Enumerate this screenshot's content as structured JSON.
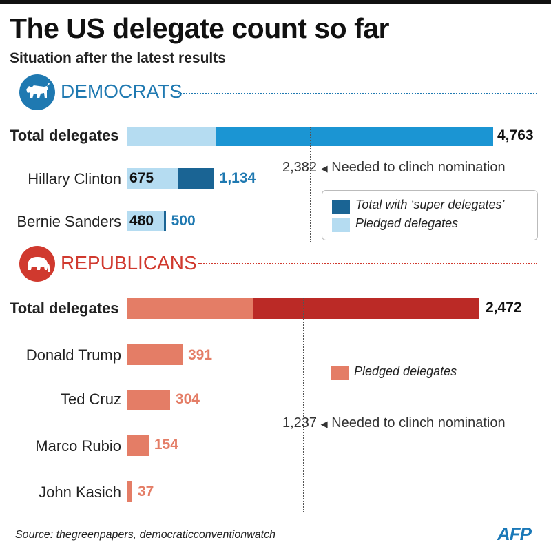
{
  "title": "The US delegate count so far",
  "subtitle": "Situation after the latest results",
  "colors": {
    "dem_dark": "#1a6494",
    "dem_mid": "#1b95d3",
    "dem_light": "#b5dcf1",
    "dem_text": "#1f79b1",
    "rep_dark": "#bb2a26",
    "rep_light": "#e47d66",
    "rep_text": "#d0392e"
  },
  "democrats": {
    "party": "DEMOCRATS",
    "icon": "donkey-icon",
    "total_label": "Total delegates",
    "total_value": "4,763",
    "needed_value": "2,382",
    "needed_text": "Needed to clinch nomination",
    "candidates": [
      {
        "name": "Hillary Clinton",
        "pledged_label": "675",
        "total_label": "1,134"
      },
      {
        "name": "Bernie Sanders",
        "pledged_label": "480",
        "total_label": "500"
      }
    ],
    "legend": {
      "super": "Total with ‘super delegates’",
      "pledged": "Pledged delegates"
    }
  },
  "republicans": {
    "party": "REPUBLICANS",
    "icon": "elephant-icon",
    "total_label": "Total delegates",
    "total_value": "2,472",
    "needed_value": "1,237",
    "needed_text": "Needed to clinch nomination",
    "candidates": [
      {
        "name": "Donald Trump",
        "value_label": "391"
      },
      {
        "name": "Ted Cruz",
        "value_label": "304"
      },
      {
        "name": "Marco Rubio",
        "value_label": "154"
      },
      {
        "name": "John Kasich",
        "value_label": "37"
      }
    ],
    "legend": {
      "pledged": "Pledged delegates"
    }
  },
  "source": "Source: thegreenpapers, democraticconventionwatch",
  "logo": "AFP",
  "chart_data": [
    {
      "type": "bar",
      "orientation": "horizontal",
      "categories": [
        "Total delegates",
        "Hillary Clinton",
        "Bernie Sanders"
      ],
      "series": [
        {
          "name": "Pledged delegates",
          "values": [
            null,
            675,
            480
          ]
        },
        {
          "name": "Total with ‘super delegates’",
          "values": [
            4763,
            1134,
            500
          ]
        }
      ],
      "reference_line": {
        "value": 2382,
        "label": "Needed to clinch nomination"
      }
    },
    {
      "type": "bar",
      "orientation": "horizontal",
      "categories": [
        "Total delegates",
        "Donald Trump",
        "Ted Cruz",
        "Marco Rubio",
        "John Kasich"
      ],
      "series": [
        {
          "name": "Pledged delegates",
          "values": [
            2472,
            391,
            304,
            154,
            37
          ]
        }
      ],
      "reference_line": {
        "value": 1237,
        "label": "Needed to clinch nomination"
      }
    }
  ]
}
